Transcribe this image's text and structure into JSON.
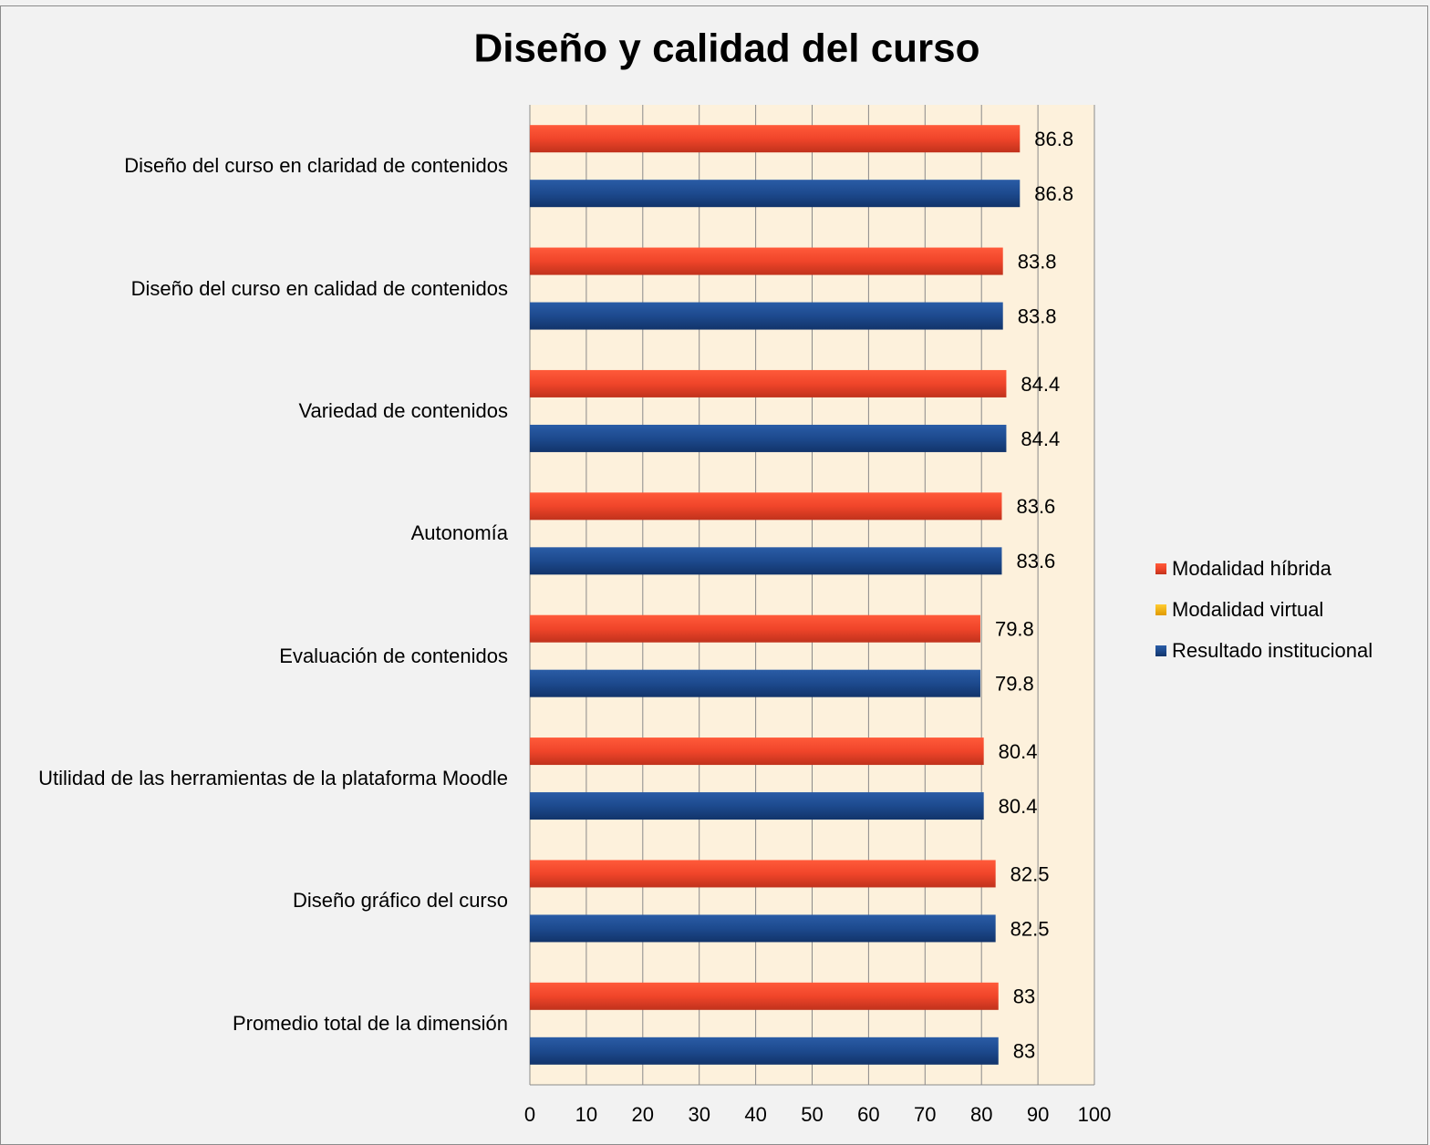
{
  "chart_data": {
    "type": "barh",
    "title": "Diseño y calidad del curso",
    "categories": [
      "Diseño del curso en claridad de contenidos",
      "Diseño del curso en calidad de contenidos",
      "Variedad de contenidos",
      "Autonomía",
      "Evaluación de contenidos",
      "Utilidad de las herramientas de la plataforma Moodle",
      "Diseño gráfico del curso",
      "Promedio total de la dimensión"
    ],
    "series": [
      {
        "name": "Modalidad híbrida",
        "color": "#f0452a",
        "values": [
          86.8,
          83.8,
          84.4,
          83.6,
          79.8,
          80.4,
          82.5,
          83
        ]
      },
      {
        "name": "Modalidad virtual",
        "color": "#f5b800",
        "values": [
          null,
          null,
          null,
          null,
          null,
          null,
          null,
          null
        ]
      },
      {
        "name": "Resultado institucional",
        "color": "#1d4a8e",
        "values": [
          86.8,
          83.8,
          84.4,
          83.6,
          79.8,
          80.4,
          82.5,
          83
        ]
      }
    ],
    "xlim": [
      0,
      100
    ],
    "xticks": [
      0,
      10,
      20,
      30,
      40,
      50,
      60,
      70,
      80,
      90,
      100
    ],
    "grid": true,
    "legend": "right"
  }
}
